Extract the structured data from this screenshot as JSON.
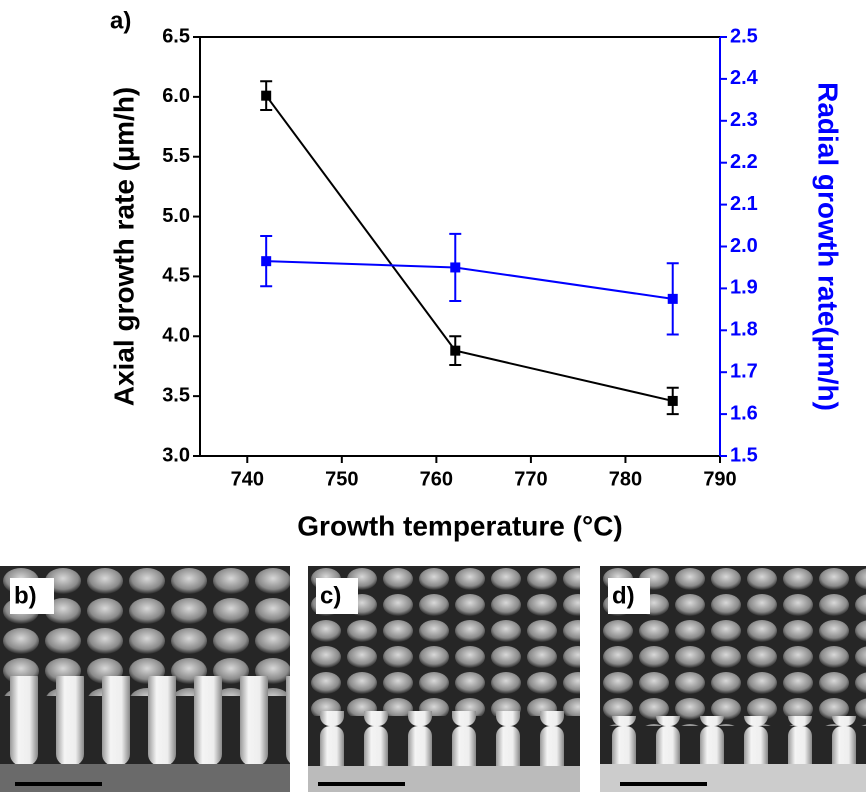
{
  "chart_data": {
    "type": "line",
    "annotation": "a)",
    "xlabel": "Growth temperature (°C)",
    "ylabel": "Axial growth rate (µm/h)",
    "y2label": "Radial growth rate(µm/h)",
    "x": [
      742,
      762,
      785
    ],
    "series": [
      {
        "name": "Axial growth rate",
        "color": "#000000",
        "values": [
          6.01,
          3.88,
          3.46
        ],
        "errors": [
          0.12,
          0.12,
          0.11
        ]
      },
      {
        "name": "Radial growth rate",
        "color": "#0000ff",
        "axis": "y2",
        "values": [
          1.965,
          1.95,
          1.875
        ],
        "errors": [
          0.06,
          0.08,
          0.085
        ]
      }
    ],
    "xlim": [
      735,
      790
    ],
    "xticks": [
      740,
      750,
      760,
      770,
      780,
      790
    ],
    "ylim": [
      3,
      6.5
    ],
    "yticks": [
      {
        "value": 3,
        "label": "3.0"
      },
      3.5,
      {
        "value": 4,
        "label": "4.0"
      },
      4.5,
      {
        "value": 5,
        "label": "5.0"
      },
      5.5,
      {
        "value": 6,
        "label": "6.0"
      },
      6.5
    ],
    "y2lim": [
      1.5,
      2.5
    ],
    "y2ticks": [
      1.5,
      1.6,
      1.7,
      1.8,
      1.9,
      {
        "value": 2,
        "label": "2.0"
      },
      2.1,
      2.2,
      2.3,
      2.4,
      2.5
    ],
    "y2color": "#0000ff",
    "grid": false
  },
  "images": [
    {
      "label": "b)"
    },
    {
      "label": "c)"
    },
    {
      "label": "d)"
    }
  ]
}
